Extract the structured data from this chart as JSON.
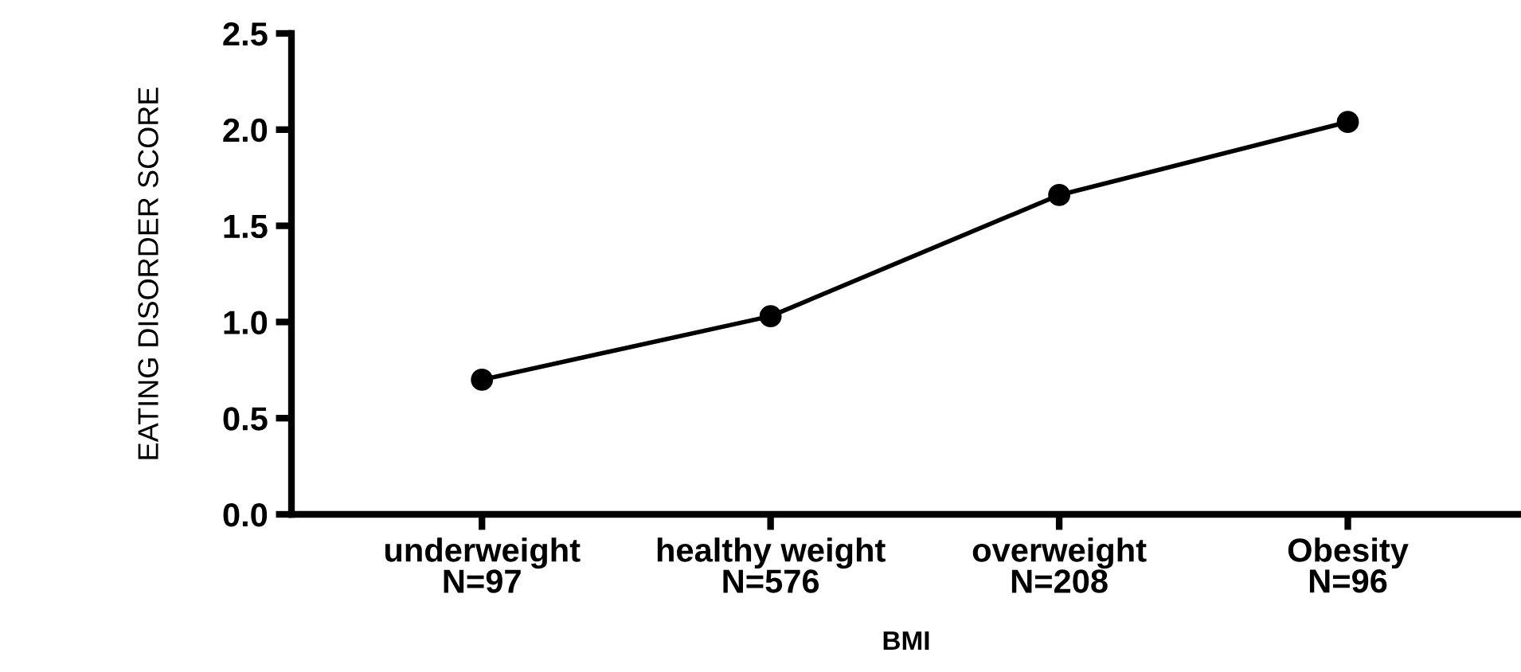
{
  "chart_data": {
    "type": "line",
    "xlabel": "BMI",
    "ylabel": "EATING DISORDER SCORE",
    "categories": [
      "underweight\nN=97",
      "healthy weight\nN=576",
      "overweight\nN=208",
      "Obesity\nN=96"
    ],
    "series": [
      {
        "color": "#000000",
        "values": [
          0.7,
          1.03,
          1.66,
          2.04
        ]
      }
    ],
    "ylim": [
      0,
      2.5
    ],
    "yticks": [
      {
        "value": 0,
        "label": "0.0"
      },
      0.5,
      {
        "value": 1,
        "label": "1.0"
      },
      1.5,
      {
        "value": 2,
        "label": "2.0"
      },
      2.5
    ],
    "marker": "circle",
    "line_style": "solid",
    "grid": false,
    "legend": false
  }
}
